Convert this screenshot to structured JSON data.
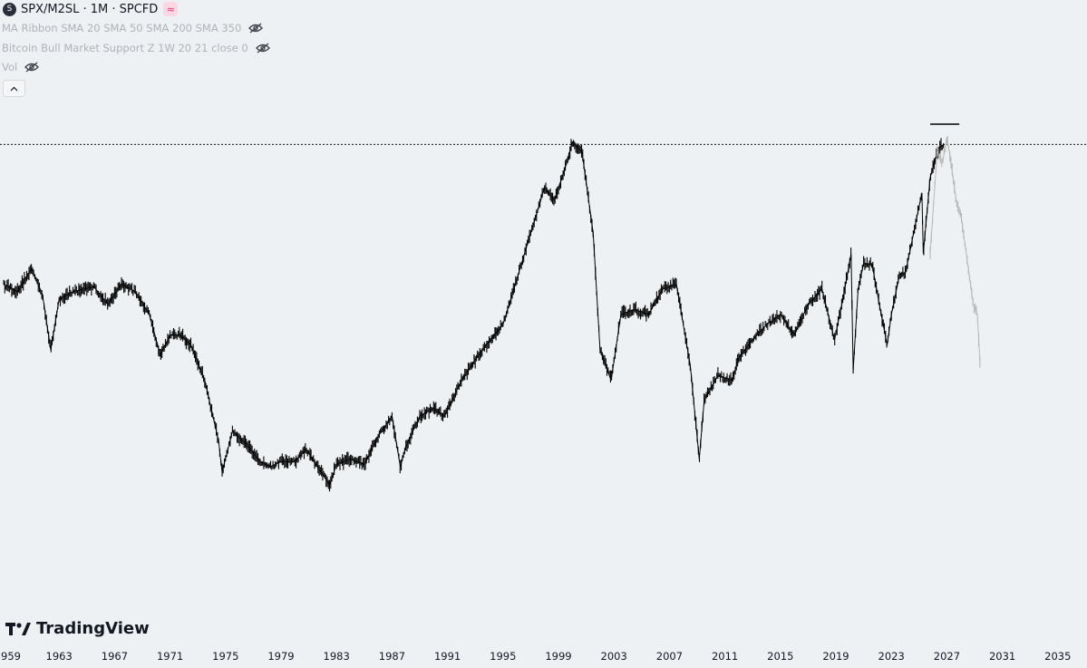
{
  "legend": {
    "symbol_icon": "S",
    "title": "SPX/M2SL · 1M · SPCFD",
    "badge_icon": "≈",
    "indicators": [
      {
        "label": "MA Ribbon SMA 20 SMA 50 SMA 200 SMA 350",
        "icon": "eye-crossed-icon"
      },
      {
        "label": "Bitcoin Bull Market Support Z 1W 20 21 close 0",
        "icon": "eye-crossed-icon"
      },
      {
        "label": "Vol",
        "icon": "eye-crossed-icon"
      }
    ]
  },
  "branding": {
    "name": "TradingView"
  },
  "colors": {
    "background": "#eef1f3",
    "price": "#000000",
    "projection": "#b8b8b8",
    "reference_line": "#131722"
  },
  "chart_data": {
    "type": "line",
    "title": "SPX/M2SL · 1M · SPCFD",
    "xlabel": "",
    "ylabel": "",
    "xlim": [
      1959,
      2036
    ],
    "ylim": [
      0,
      1
    ],
    "y_axis_visible": false,
    "x_ticks": [
      "959",
      "1963",
      "1967",
      "1971",
      "1975",
      "1979",
      "1983",
      "1987",
      "1991",
      "1995",
      "1999",
      "2003",
      "2007",
      "2011",
      "2015",
      "2019",
      "2023",
      "2027",
      "2031",
      "2035"
    ],
    "reference_level": 0.835,
    "series": [
      {
        "name": "SPX/M2SL",
        "x": [
          1959.0,
          1960.0,
          1961.0,
          1961.8,
          1962.4,
          1963.0,
          1964.0,
          1965.5,
          1966.5,
          1967.5,
          1968.5,
          1969.5,
          1970.3,
          1971.0,
          1971.7,
          1972.5,
          1973.5,
          1974.5,
          1974.75,
          1975.5,
          1976.5,
          1977.5,
          1978.2,
          1979.0,
          1980.0,
          1980.8,
          1981.5,
          1982.5,
          1983.0,
          1984.0,
          1985.0,
          1986.0,
          1987.0,
          1987.6,
          1988.0,
          1989.0,
          1990.0,
          1990.8,
          1992.0,
          1993.5,
          1995.0,
          1996.0,
          1997.0,
          1998.0,
          1998.7,
          1999.5,
          2000.0,
          2000.7,
          2001.5,
          2002.0,
          2002.8,
          2003.5,
          2004.5,
          2005.5,
          2006.5,
          2007.5,
          2008.0,
          2008.5,
          2009.15,
          2009.5,
          2010.5,
          2011.5,
          2012.0,
          2013.0,
          2014.0,
          2015.0,
          2016.0,
          2017.0,
          2018.0,
          2018.9,
          2019.5,
          2020.1,
          2020.25,
          2020.6,
          2021.0,
          2021.6,
          2022.2,
          2022.7,
          2023.0,
          2023.6,
          2024.0,
          2024.6,
          2025.2,
          2025.3,
          2025.8,
          2026.2,
          2026.5,
          2026.8
        ],
        "y": [
          0.56,
          0.545,
          0.59,
          0.54,
          0.43,
          0.53,
          0.545,
          0.555,
          0.52,
          0.56,
          0.545,
          0.5,
          0.42,
          0.46,
          0.46,
          0.44,
          0.37,
          0.25,
          0.19,
          0.27,
          0.245,
          0.21,
          0.2,
          0.21,
          0.21,
          0.235,
          0.205,
          0.165,
          0.205,
          0.215,
          0.205,
          0.26,
          0.3,
          0.2,
          0.24,
          0.3,
          0.315,
          0.3,
          0.37,
          0.43,
          0.48,
          0.57,
          0.66,
          0.75,
          0.725,
          0.79,
          0.84,
          0.82,
          0.66,
          0.43,
          0.37,
          0.5,
          0.51,
          0.5,
          0.55,
          0.56,
          0.48,
          0.4,
          0.215,
          0.33,
          0.38,
          0.37,
          0.415,
          0.45,
          0.48,
          0.5,
          0.46,
          0.52,
          0.55,
          0.45,
          0.53,
          0.62,
          0.39,
          0.55,
          0.6,
          0.6,
          0.51,
          0.44,
          0.5,
          0.58,
          0.58,
          0.66,
          0.74,
          0.62,
          0.77,
          0.81,
          0.83,
          0.835
        ]
      },
      {
        "name": "Projection",
        "x": [
          2025.8,
          2026.3,
          2026.7,
          2027.0,
          2027.3,
          2027.7,
          2028.0,
          2028.3,
          2028.6,
          2028.9,
          2029.2,
          2029.4
        ],
        "y": [
          0.62,
          0.82,
          0.8,
          0.85,
          0.8,
          0.72,
          0.7,
          0.64,
          0.58,
          0.52,
          0.5,
          0.4
        ]
      }
    ],
    "annotations": [
      {
        "type": "horizontal-segment",
        "x": [
          2025.8,
          2027.9
        ],
        "y": 0.875
      }
    ]
  }
}
